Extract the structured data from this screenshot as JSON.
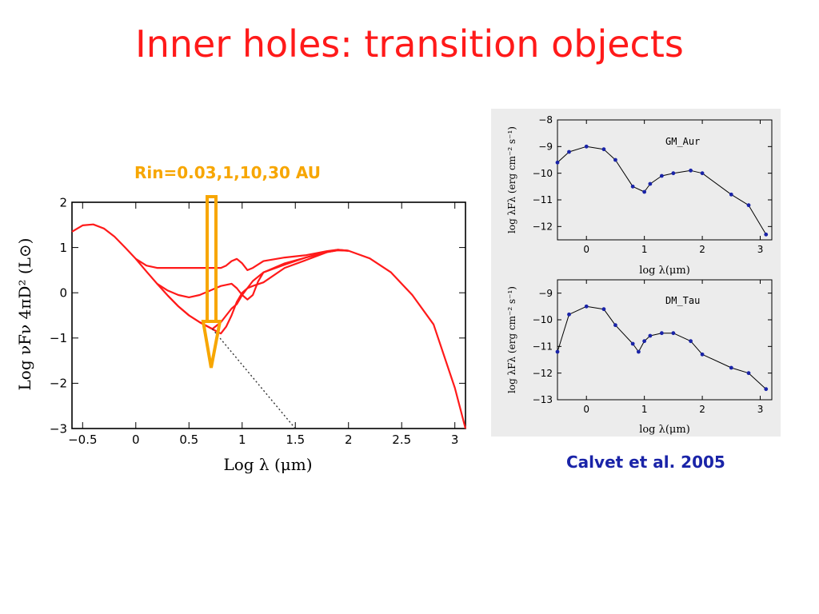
{
  "slide": {
    "title": "Inner holes: transition objects",
    "annotation": "Rin=0.03,1,10,30 AU",
    "citation": "Calvet et al. 2005"
  },
  "colors": {
    "title": "#ff1a1a",
    "annotation": "#f7a600",
    "citation": "#1a24a8",
    "model_curve": "#ff1a1a",
    "arrow": "#f7a600"
  },
  "chart_data": [
    {
      "type": "line",
      "xlabel": "Log λ (μm)",
      "ylabel": "Log νFν 4πD² (L⊙)",
      "xlim": [
        -0.6,
        3.1
      ],
      "ylim": [
        -3,
        2
      ],
      "x_ticks": [
        "−0.5",
        "0",
        "0.5",
        "1",
        "1.5",
        "2",
        "2.5",
        "3"
      ],
      "y_ticks": [
        "2",
        "1",
        "0",
        "−1",
        "−2",
        "−3"
      ],
      "series": [
        {
          "x": [
            -0.6,
            -0.5,
            -0.4,
            -0.3,
            -0.2,
            -0.1,
            0.0,
            0.1,
            0.2,
            0.3,
            0.4,
            0.5,
            0.6,
            0.72,
            0.8,
            0.9,
            0.95,
            1.0,
            1.1,
            1.2,
            1.4,
            1.6,
            1.8,
            1.9,
            2.0,
            2.2,
            2.4,
            2.6,
            2.8,
            3.0,
            3.1
          ],
          "y": [
            1.35,
            1.49,
            1.51,
            1.42,
            1.24,
            1.0,
            0.75,
            0.47,
            0.2,
            -0.06,
            -0.3,
            -0.5,
            -0.65,
            -0.8,
            -0.65,
            -0.35,
            -0.25,
            -0.05,
            0.26,
            0.45,
            0.65,
            0.78,
            0.91,
            0.95,
            0.93,
            0.76,
            0.45,
            -0.05,
            -0.7,
            -2.1,
            -3.0
          ]
        },
        {
          "x": [
            0.3,
            0.4,
            0.5,
            0.6,
            0.72,
            0.78,
            0.8,
            0.85,
            0.9,
            0.95,
            1.0,
            1.05,
            1.1,
            1.2,
            1.4,
            1.6,
            1.8,
            1.9,
            2.0
          ],
          "y": [
            -0.06,
            -0.3,
            -0.5,
            -0.65,
            -0.8,
            -0.88,
            -0.9,
            -0.75,
            -0.5,
            -0.2,
            0.0,
            0.1,
            0.15,
            0.23,
            0.55,
            0.72,
            0.9,
            0.94,
            0.93
          ]
        },
        {
          "x": [
            0.2,
            0.3,
            0.4,
            0.5,
            0.6,
            0.7,
            0.75,
            0.8,
            0.9,
            0.95,
            1.0,
            1.05,
            1.1,
            1.15,
            1.2,
            1.4,
            1.6,
            1.8,
            1.9,
            2.0
          ],
          "y": [
            0.2,
            0.05,
            -0.05,
            -0.1,
            -0.05,
            0.05,
            0.1,
            0.15,
            0.2,
            0.1,
            -0.05,
            -0.15,
            -0.05,
            0.25,
            0.45,
            0.62,
            0.78,
            0.9,
            0.94,
            0.93
          ]
        },
        {
          "x": [
            0.0,
            0.1,
            0.2,
            0.3,
            0.5,
            0.7,
            0.8,
            0.85,
            0.9,
            0.95,
            1.0,
            1.05,
            1.1,
            1.2,
            1.4,
            1.6,
            1.8,
            1.9,
            2.0
          ],
          "y": [
            0.75,
            0.6,
            0.55,
            0.55,
            0.55,
            0.55,
            0.55,
            0.6,
            0.7,
            0.75,
            0.65,
            0.5,
            0.55,
            0.7,
            0.78,
            0.83,
            0.92,
            0.95,
            0.93
          ]
        },
        {
          "x": [
            0.72,
            1.5
          ],
          "y": [
            -0.8,
            -3.0
          ],
          "style": "dotted"
        }
      ]
    },
    {
      "type": "scatter",
      "label": "GM_Aur",
      "xlabel": "log λ(μm)",
      "ylabel": "log λFλ (erg cm⁻² s⁻¹)",
      "xlim": [
        -0.5,
        3.2
      ],
      "ylim": [
        -12.5,
        -8
      ],
      "x_ticks": [
        "0",
        "1",
        "2",
        "3"
      ],
      "y_ticks": [
        "−8",
        "−9",
        "−10",
        "−11",
        "−12"
      ],
      "series": [
        {
          "x": [
            -0.5,
            -0.3,
            0.0,
            0.3,
            0.5,
            0.8,
            1.0,
            1.1,
            1.3,
            1.5,
            1.8,
            2.0,
            2.5,
            2.8,
            3.1
          ],
          "y": [
            -9.6,
            -9.2,
            -9.0,
            -9.1,
            -9.5,
            -10.5,
            -10.7,
            -10.4,
            -10.1,
            -10.0,
            -9.9,
            -10.0,
            -10.8,
            -11.2,
            -12.3
          ]
        }
      ]
    },
    {
      "type": "scatter",
      "label": "DM_Tau",
      "xlabel": "log λ(μm)",
      "ylabel": "log λFλ (erg cm⁻² s⁻¹)",
      "xlim": [
        -0.5,
        3.2
      ],
      "ylim": [
        -13,
        -8.5
      ],
      "x_ticks": [
        "0",
        "1",
        "2",
        "3"
      ],
      "y_ticks": [
        "−9",
        "−10",
        "−11",
        "−12",
        "−13"
      ],
      "series": [
        {
          "x": [
            -0.5,
            -0.3,
            0.0,
            0.3,
            0.5,
            0.8,
            0.9,
            1.0,
            1.1,
            1.3,
            1.5,
            1.8,
            2.0,
            2.5,
            2.8,
            3.1
          ],
          "y": [
            -11.2,
            -9.8,
            -9.5,
            -9.6,
            -10.2,
            -10.9,
            -11.2,
            -10.8,
            -10.6,
            -10.5,
            -10.5,
            -10.8,
            -11.3,
            -11.8,
            -12.0,
            -12.6
          ]
        }
      ]
    }
  ]
}
